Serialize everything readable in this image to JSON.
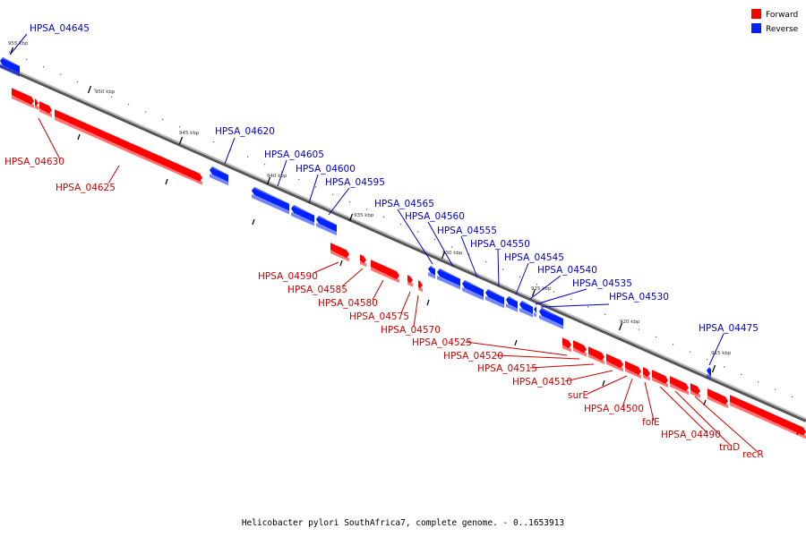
{
  "caption": "Helicobacter pylori SouthAfrica7, complete genome. - 0..1653913",
  "legend": {
    "items": [
      {
        "label": "Forward",
        "color": "#ff0000"
      },
      {
        "label": "Reverse",
        "color": "#0022ff"
      }
    ]
  },
  "colors": {
    "forward": "#ff0000",
    "reverse": "#0022ff",
    "backbone": "#888888"
  },
  "ticks": [
    "955 kbp",
    "950 kbp",
    "945 kbp",
    "940 kbp",
    "935 kbp",
    "930 kbp",
    "925 kbp",
    "920 kbp",
    "915 kbp"
  ],
  "genes": {
    "reverse": [
      "HPSA_04645",
      "HPSA_04620",
      "HPSA_04605",
      "HPSA_04600",
      "HPSA_04595",
      "HPSA_04565",
      "HPSA_04560",
      "HPSA_04555",
      "HPSA_04550",
      "HPSA_04545",
      "HPSA_04540",
      "HPSA_04535",
      "HPSA_04530",
      "HPSA_04475"
    ],
    "forward": [
      "HPSA_04630",
      "HPSA_04625",
      "HPSA_04590",
      "HPSA_04585",
      "HPSA_04580",
      "HPSA_04575",
      "HPSA_04570",
      "HPSA_04525",
      "HPSA_04520",
      "HPSA_04515",
      "HPSA_04510",
      "surE",
      "HPSA_04500",
      "folE",
      "HPSA_04490",
      "truD",
      "recR"
    ]
  }
}
